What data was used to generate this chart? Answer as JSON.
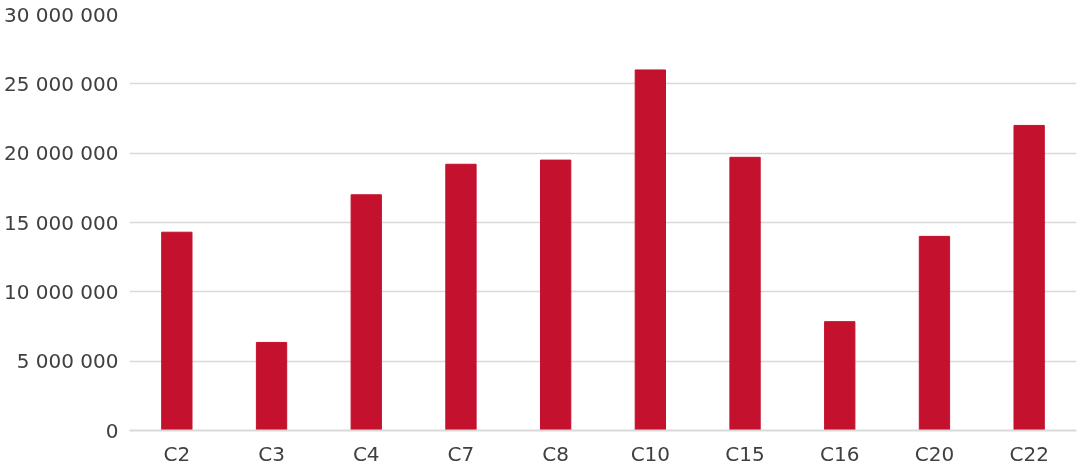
{
  "chart_data": {
    "type": "bar",
    "categories": [
      "C2",
      "C3",
      "C4",
      "C7",
      "C8",
      "C10",
      "C15",
      "C16",
      "C20",
      "C22"
    ],
    "values": [
      14300000,
      6350000,
      17000000,
      19200000,
      19500000,
      26000000,
      19700000,
      7850000,
      14000000,
      22000000
    ],
    "color": "#c3112e",
    "ylim": [
      0,
      30000000
    ],
    "yticks": [
      {
        "value": 0,
        "label": "0"
      },
      {
        "value": 5000000,
        "label": "5 000 000"
      },
      {
        "value": 10000000,
        "label": "10 000 000"
      },
      {
        "value": 15000000,
        "label": "15 000 000"
      },
      {
        "value": 20000000,
        "label": "20 000 000"
      },
      {
        "value": 25000000,
        "label": "25 000 000"
      },
      {
        "value": 30000000,
        "label": "30 000 000"
      }
    ],
    "grid": "y"
  }
}
